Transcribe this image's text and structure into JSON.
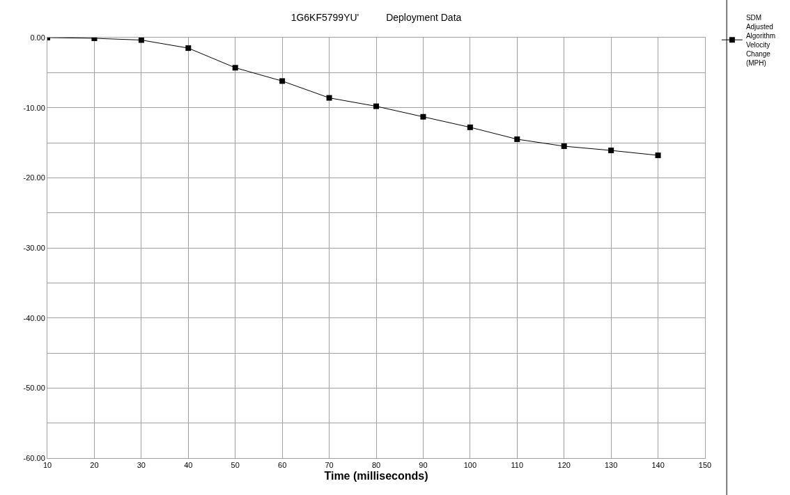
{
  "chart_data": {
    "type": "line",
    "title": "1G6KF5799YU'          Deployment Data",
    "xlabel": "Time (milliseconds)",
    "x": [
      10,
      20,
      30,
      40,
      50,
      60,
      70,
      80,
      90,
      100,
      110,
      120,
      130,
      140
    ],
    "series": [
      {
        "name": "SDM Adjusted Algorithm Velocity Change (MPH)",
        "color": "#000000",
        "values": [
          0,
          -0.1,
          -0.35,
          -1.5,
          -4.3,
          -6.2,
          -8.6,
          -9.8,
          -11.3,
          -12.8,
          -14.5,
          -15.5,
          -16.1,
          -16.8
        ]
      }
    ],
    "xlim": [
      10,
      150
    ],
    "xticks": [
      10,
      20,
      30,
      40,
      50,
      60,
      70,
      80,
      90,
      100,
      110,
      120,
      130,
      140,
      150
    ],
    "ylim": [
      -60,
      0
    ],
    "yticks": [
      {
        "value": -60,
        "label": "-60.00"
      },
      {
        "value": -55,
        "label": null
      },
      {
        "value": -50,
        "label": "-50.00"
      },
      {
        "value": -45,
        "label": null
      },
      {
        "value": -40,
        "label": "-40.00"
      },
      {
        "value": -35,
        "label": null
      },
      {
        "value": -30,
        "label": "-30.00"
      },
      {
        "value": -25,
        "label": null
      },
      {
        "value": -20,
        "label": "-20.00"
      },
      {
        "value": -15,
        "label": null
      },
      {
        "value": -10,
        "label": "-10.00"
      },
      {
        "value": -5,
        "label": null
      },
      {
        "value": 0,
        "label": "0.00"
      }
    ],
    "grid": true,
    "legend": "top right",
    "marker": "square",
    "line_style": "solid"
  }
}
